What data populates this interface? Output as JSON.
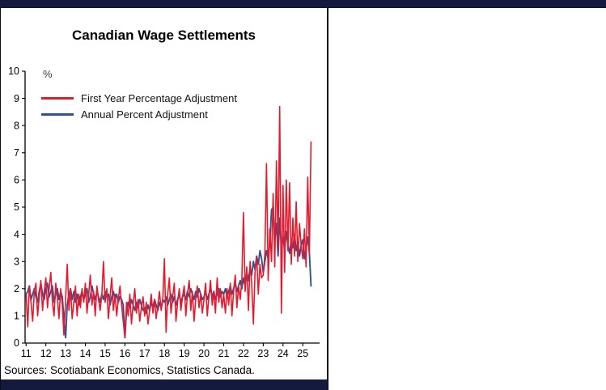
{
  "figure": {
    "title": "Canadian Wage Settlements",
    "unit_label": "%",
    "sources": "Sources: Scotiabank Economics, Statistics Canada.",
    "accent_color": "#131a3e"
  },
  "chart_data": {
    "type": "line",
    "title": "Canadian Wage Settlements",
    "xlabel": "",
    "ylabel": "%",
    "ylim": [
      0,
      10
    ],
    "xlim": [
      10.95,
      25.85
    ],
    "grid": false,
    "legend_position": "top-left",
    "frequency": "monthly",
    "x_start_year": 2011,
    "y_ticks": [
      0,
      1,
      2,
      3,
      4,
      5,
      6,
      7,
      8,
      9,
      10
    ],
    "x_ticks": [
      11,
      12,
      13,
      14,
      15,
      16,
      17,
      18,
      19,
      20,
      21,
      22,
      23,
      24,
      25
    ],
    "series": [
      {
        "name": "First Year Percentage Adjustment",
        "color": "#e8192c",
        "values": [
          1.8,
          0.6,
          2.1,
          1.5,
          0.8,
          1.9,
          2.2,
          1.0,
          1.7,
          2.3,
          1.2,
          1.9,
          2.4,
          1.3,
          2.0,
          2.6,
          1.5,
          1.0,
          2.2,
          1.7,
          0.9,
          2.0,
          1.4,
          0.3,
          1.6,
          2.9,
          1.2,
          2.0,
          0.9,
          1.5,
          2.1,
          1.0,
          1.8,
          1.3,
          2.0,
          1.5,
          2.2,
          1.1,
          1.8,
          2.5,
          1.4,
          1.9,
          1.0,
          2.1,
          1.6,
          1.2,
          1.8,
          3.0,
          1.5,
          2.0,
          0.9,
          1.7,
          2.4,
          1.2,
          1.8,
          1.0,
          1.6,
          2.1,
          1.4,
          0.8,
          0.2,
          1.5,
          1.0,
          1.8,
          0.7,
          1.4,
          2.0,
          1.1,
          1.6,
          0.8,
          1.3,
          1.7,
          1.0,
          1.5,
          0.7,
          1.2,
          1.8,
          1.1,
          1.6,
          0.9,
          1.4,
          1.9,
          1.2,
          1.6,
          3.1,
          0.4,
          1.8,
          2.4,
          1.1,
          1.7,
          2.2,
          0.8,
          1.5,
          2.0,
          1.2,
          1.7,
          2.1,
          1.0,
          1.8,
          2.3,
          1.2,
          1.9,
          0.8,
          1.6,
          2.1,
          1.3,
          1.8,
          1.1,
          1.6,
          2.2,
          1.0,
          1.7,
          2.3,
          1.4,
          1.9,
          1.1,
          2.4,
          1.5,
          2.0,
          1.3,
          1.8,
          1.1,
          2.0,
          1.4,
          2.2,
          1.0,
          1.9,
          2.5,
          1.3,
          2.1,
          1.6,
          2.3,
          4.8,
          1.9,
          2.8,
          1.2,
          3.0,
          2.2,
          0.7,
          2.6,
          3.2,
          1.8,
          2.9,
          2.4,
          2.5,
          3.3,
          6.6,
          2.3,
          4.2,
          3.0,
          5.5,
          2.8,
          6.7,
          3.5,
          8.7,
          1.1,
          5.8,
          2.6,
          6.0,
          3.4,
          5.9,
          2.9,
          4.6,
          3.2,
          5.2,
          3.0,
          4.4,
          3.6,
          3.1,
          4.2,
          2.8,
          6.1,
          3.3,
          7.4
        ]
      },
      {
        "name": "Annual Percent Adjustment",
        "color": "#2e5395",
        "values": [
          1.8,
          1.9,
          2.1,
          1.6,
          1.8,
          2.0,
          1.7,
          1.5,
          1.9,
          2.2,
          1.8,
          1.6,
          2.0,
          2.2,
          1.7,
          1.9,
          2.1,
          1.5,
          1.8,
          2.0,
          1.6,
          1.9,
          1.7,
          0.9,
          0.2,
          1.4,
          1.8,
          2.0,
          1.6,
          1.9,
          1.5,
          1.8,
          1.4,
          1.7,
          1.9,
          1.6,
          1.8,
          2.0,
          1.5,
          1.7,
          2.1,
          1.8,
          1.6,
          1.9,
          1.7,
          1.5,
          1.8,
          1.6,
          1.9,
          1.7,
          1.8,
          1.4,
          1.7,
          1.9,
          1.6,
          1.8,
          1.5,
          1.7,
          1.6,
          1.4,
          0.2,
          1.2,
          1.5,
          1.3,
          1.6,
          1.4,
          1.2,
          1.5,
          1.3,
          1.6,
          1.4,
          1.2,
          1.3,
          1.1,
          1.4,
          1.2,
          1.5,
          1.3,
          1.6,
          1.4,
          1.2,
          1.5,
          1.3,
          1.6,
          1.5,
          1.7,
          1.4,
          1.6,
          1.8,
          1.5,
          1.7,
          1.4,
          1.6,
          1.8,
          1.5,
          1.7,
          1.8,
          1.6,
          1.9,
          1.7,
          2.0,
          1.8,
          1.6,
          1.9,
          1.7,
          2.0,
          1.8,
          1.6,
          1.7,
          1.9,
          1.6,
          1.8,
          2.0,
          1.7,
          1.9,
          1.6,
          1.8,
          2.0,
          1.7,
          1.9,
          1.8,
          2.0,
          1.7,
          1.9,
          2.1,
          1.8,
          2.0,
          2.2,
          1.9,
          2.1,
          2.3,
          2.0,
          2.4,
          2.1,
          2.6,
          2.3,
          2.8,
          2.5,
          3.0,
          2.7,
          3.2,
          2.9,
          3.4,
          3.1,
          2.6,
          3.0,
          3.4,
          3.1,
          3.7,
          4.9,
          5.0,
          3.8,
          4.4,
          3.2,
          4.6,
          3.5,
          3.9,
          3.4,
          4.1,
          3.6,
          3.3,
          3.8,
          3.5,
          4.0,
          3.4,
          3.7,
          3.2,
          3.6,
          3.8,
          3.1,
          3.5,
          3.9,
          3.3,
          2.1
        ]
      }
    ]
  }
}
